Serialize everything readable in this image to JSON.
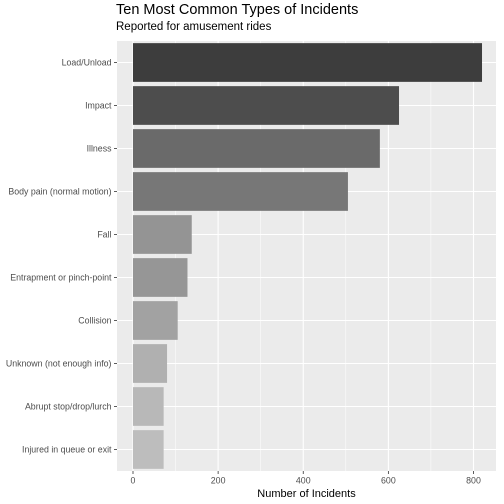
{
  "chart_data": {
    "type": "bar",
    "orientation": "horizontal",
    "title": "Ten Most Common Types of Incidents",
    "subtitle": "Reported for amusement rides",
    "xlabel": "Number of Incidents",
    "ylabel": "",
    "xlim": [
      -35,
      850
    ],
    "xticks": [
      0,
      200,
      400,
      600,
      800
    ],
    "grid": true,
    "categories": [
      "Load/Unload",
      "Impact",
      "Illness",
      "Body pain (normal motion)",
      "Fall",
      "Entrapment or pinch-point",
      "Collision",
      "Unknown (not enough info)",
      "Abrupt stop/drop/lurch",
      "Injured in queue or exit"
    ],
    "values": [
      820,
      625,
      580,
      505,
      138,
      128,
      105,
      80,
      72,
      72
    ],
    "colors": [
      "#3d3d3d",
      "#4d4d4d",
      "#6a6a6a",
      "#777777",
      "#949494",
      "#969696",
      "#a2a2a2",
      "#b0b0b0",
      "#b8b8b8",
      "#bdbdbd"
    ],
    "panel_background": "#ebebeb",
    "grid_color": "#ffffff"
  }
}
